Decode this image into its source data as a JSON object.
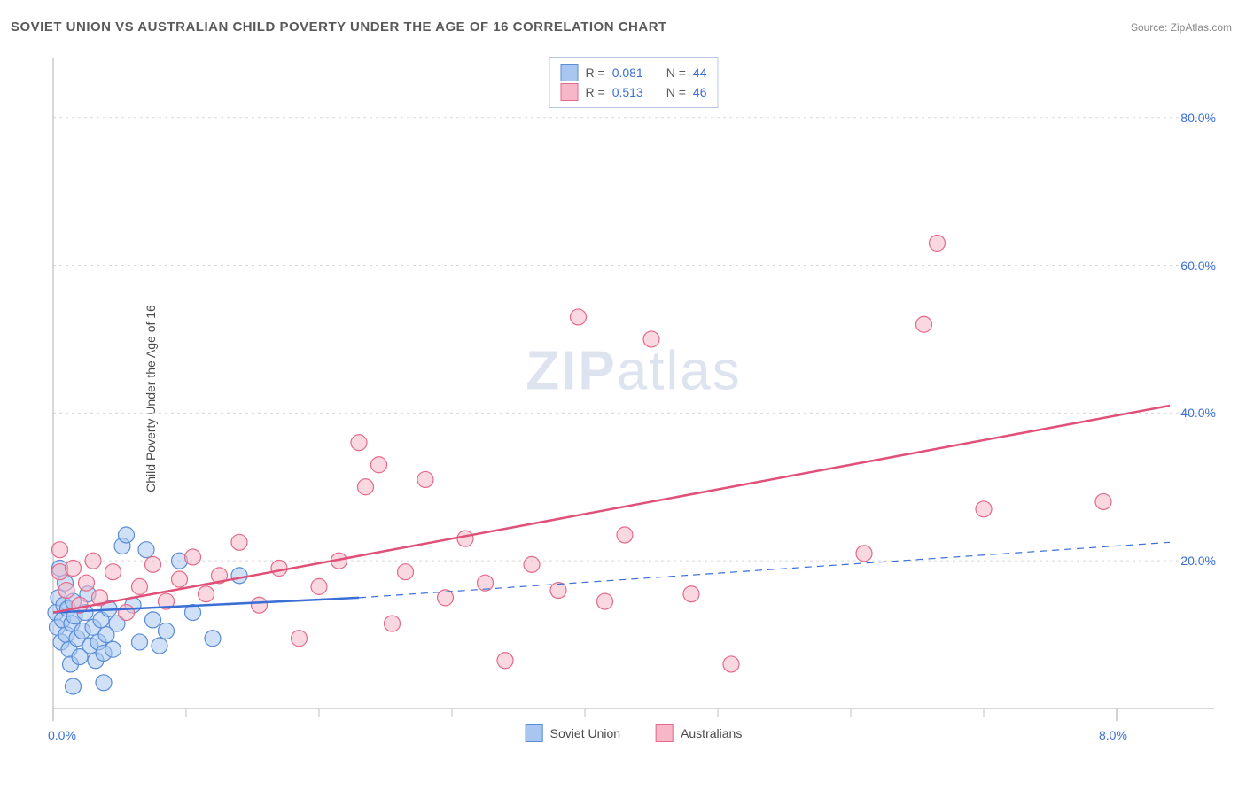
{
  "title": "SOVIET UNION VS AUSTRALIAN CHILD POVERTY UNDER THE AGE OF 16 CORRELATION CHART",
  "source_label": "Source: ZipAtlas.com",
  "ylabel": "Child Poverty Under the Age of 16",
  "watermark_bold": "ZIP",
  "watermark_light": "atlas",
  "chart": {
    "type": "scatter",
    "background_color": "#ffffff",
    "grid_color": "#d8d8d8",
    "axis_color": "#bfbfbf",
    "tick_color": "#bfbfbf",
    "text_color": "#5a5a5a",
    "value_color": "#3b6fd6",
    "xlim": [
      0.0,
      8.4
    ],
    "ylim": [
      0.0,
      88.0
    ],
    "xticks_major": [
      0.0,
      8.0
    ],
    "xticks_minor": [
      1.0,
      2.0,
      3.0,
      4.0,
      5.0,
      6.0,
      7.0
    ],
    "yticks": [
      20.0,
      40.0,
      60.0,
      80.0
    ],
    "xtick_labels": {
      "0.0": "0.0%",
      "8.0": "8.0%"
    },
    "ytick_labels": {
      "20.0": "20.0%",
      "40.0": "40.0%",
      "60.0": "60.0%",
      "80.0": "80.0%"
    },
    "marker_radius": 9,
    "marker_stroke_width": 1.2,
    "trend_line_width": 2.5,
    "trend_dash_width": 1.2,
    "series": [
      {
        "name": "Soviet Union",
        "legend_label": "Soviet Union",
        "fill": "#a8c6f0",
        "stroke": "#5a8dd6",
        "fill_opacity": 0.55,
        "stats": {
          "R_label": "R =",
          "R": "0.081",
          "N_label": "N =",
          "N": "44"
        },
        "trend": {
          "x1": 0.0,
          "y1": 13.0,
          "x2": 2.3,
          "y2": 15.0,
          "dash_x2": 8.4,
          "dash_y2": 22.5,
          "color": "#3b6fd6"
        },
        "points": [
          [
            0.02,
            13.0
          ],
          [
            0.03,
            11.0
          ],
          [
            0.04,
            15.0
          ],
          [
            0.05,
            19.0
          ],
          [
            0.06,
            9.0
          ],
          [
            0.07,
            12.0
          ],
          [
            0.08,
            14.0
          ],
          [
            0.09,
            17.0
          ],
          [
            0.1,
            10.0
          ],
          [
            0.11,
            13.5
          ],
          [
            0.12,
            8.0
          ],
          [
            0.13,
            6.0
          ],
          [
            0.14,
            11.5
          ],
          [
            0.15,
            14.5
          ],
          [
            0.16,
            12.5
          ],
          [
            0.18,
            9.5
          ],
          [
            0.2,
            7.0
          ],
          [
            0.22,
            10.5
          ],
          [
            0.24,
            13.0
          ],
          [
            0.26,
            15.5
          ],
          [
            0.28,
            8.5
          ],
          [
            0.3,
            11.0
          ],
          [
            0.32,
            6.5
          ],
          [
            0.34,
            9.0
          ],
          [
            0.36,
            12.0
          ],
          [
            0.38,
            7.5
          ],
          [
            0.4,
            10.0
          ],
          [
            0.42,
            13.5
          ],
          [
            0.45,
            8.0
          ],
          [
            0.48,
            11.5
          ],
          [
            0.52,
            22.0
          ],
          [
            0.55,
            23.5
          ],
          [
            0.6,
            14.0
          ],
          [
            0.65,
            9.0
          ],
          [
            0.7,
            21.5
          ],
          [
            0.75,
            12.0
          ],
          [
            0.8,
            8.5
          ],
          [
            0.85,
            10.5
          ],
          [
            0.95,
            20.0
          ],
          [
            1.05,
            13.0
          ],
          [
            1.2,
            9.5
          ],
          [
            1.4,
            18.0
          ],
          [
            0.38,
            3.5
          ],
          [
            0.15,
            3.0
          ]
        ]
      },
      {
        "name": "Australians",
        "legend_label": "Australians",
        "fill": "#f6b8c8",
        "stroke": "#e46a8a",
        "fill_opacity": 0.55,
        "stats": {
          "R_label": "R =",
          "R": "0.513",
          "N_label": "N =",
          "N": "46"
        },
        "trend": {
          "x1": 0.0,
          "y1": 13.0,
          "x2": 8.4,
          "y2": 41.0,
          "color": "#e05078"
        },
        "points": [
          [
            0.05,
            18.5
          ],
          [
            0.1,
            16.0
          ],
          [
            0.15,
            19.0
          ],
          [
            0.2,
            14.0
          ],
          [
            0.25,
            17.0
          ],
          [
            0.3,
            20.0
          ],
          [
            0.35,
            15.0
          ],
          [
            0.45,
            18.5
          ],
          [
            0.55,
            13.0
          ],
          [
            0.65,
            16.5
          ],
          [
            0.75,
            19.5
          ],
          [
            0.85,
            14.5
          ],
          [
            0.95,
            17.5
          ],
          [
            1.05,
            20.5
          ],
          [
            1.15,
            15.5
          ],
          [
            1.25,
            18.0
          ],
          [
            1.4,
            22.5
          ],
          [
            1.55,
            14.0
          ],
          [
            1.7,
            19.0
          ],
          [
            1.85,
            9.5
          ],
          [
            2.0,
            16.5
          ],
          [
            2.15,
            20.0
          ],
          [
            2.3,
            36.0
          ],
          [
            2.35,
            30.0
          ],
          [
            2.45,
            33.0
          ],
          [
            2.55,
            11.5
          ],
          [
            2.65,
            18.5
          ],
          [
            2.8,
            31.0
          ],
          [
            2.95,
            15.0
          ],
          [
            3.1,
            23.0
          ],
          [
            3.25,
            17.0
          ],
          [
            3.4,
            6.5
          ],
          [
            3.6,
            19.5
          ],
          [
            3.8,
            16.0
          ],
          [
            3.95,
            53.0
          ],
          [
            4.15,
            14.5
          ],
          [
            4.3,
            23.5
          ],
          [
            4.5,
            50.0
          ],
          [
            4.8,
            15.5
          ],
          [
            5.1,
            6.0
          ],
          [
            6.1,
            21.0
          ],
          [
            6.55,
            52.0
          ],
          [
            6.65,
            63.0
          ],
          [
            7.0,
            27.0
          ],
          [
            7.9,
            28.0
          ],
          [
            0.05,
            21.5
          ]
        ]
      }
    ]
  }
}
